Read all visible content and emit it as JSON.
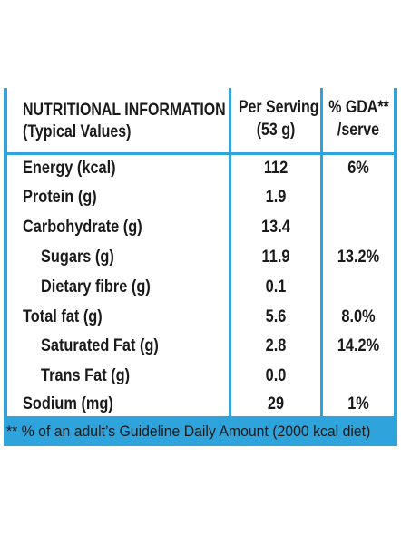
{
  "header": {
    "title_line1": "NUTRITIONAL INFORMATION",
    "title_line2": "(Typical Values)",
    "per_serving_line1": "Per Serving",
    "per_serving_line2": "(53 g)",
    "gda_line1": "% GDA**",
    "gda_line2": "/serve"
  },
  "rows": [
    {
      "name": "Energy (kcal)",
      "per_serving": "112",
      "gda": "6%"
    },
    {
      "name": "Protein (g)",
      "per_serving": "1.9",
      "gda": ""
    },
    {
      "name": "Carbohydrate (g)",
      "per_serving": "13.4",
      "gda": ""
    },
    {
      "name": "Sugars (g)",
      "per_serving": "11.9",
      "gda": "13.2%"
    },
    {
      "name": "Dietary fibre (g)",
      "per_serving": "0.1",
      "gda": ""
    },
    {
      "name": "Total fat (g)",
      "per_serving": "5.6",
      "gda": "8.0%"
    },
    {
      "name": "Saturated Fat (g)",
      "per_serving": "2.8",
      "gda": "14.2%"
    },
    {
      "name": "Trans Fat (g)",
      "per_serving": "0.0",
      "gda": ""
    },
    {
      "name": "Sodium (mg)",
      "per_serving": "29",
      "gda": "1%"
    }
  ],
  "footnote": "** % of an adult’s Guideline Daily Amount (2000 kcal diet)",
  "colors": {
    "border": "#2fa3dc",
    "text": "#1a1a1a"
  }
}
